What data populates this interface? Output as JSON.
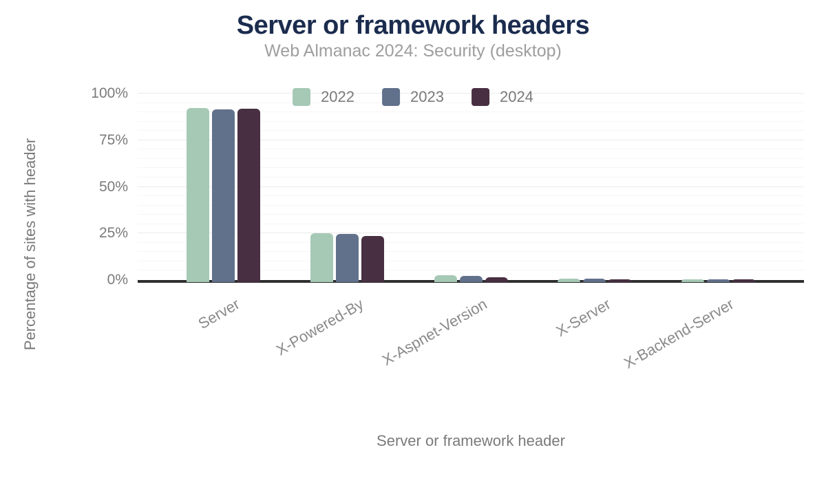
{
  "chart_data": {
    "type": "bar",
    "title": "Server or framework headers",
    "subtitle": "Web Almanac 2024: Security (desktop)",
    "xlabel": "Server or framework header",
    "ylabel": "Percentage of sites with header",
    "categories": [
      "Server",
      "X-Powered-By",
      "X-Aspnet-Version",
      "X-Server",
      "X-Backend-Server"
    ],
    "series": [
      {
        "name": "2022",
        "color": "#a6c9b5",
        "values": [
          92.3,
          25.1,
          2.5,
          0.6,
          0.5
        ]
      },
      {
        "name": "2023",
        "color": "#61718c",
        "values": [
          91.4,
          24.6,
          2.4,
          0.6,
          0.5
        ]
      },
      {
        "name": "2024",
        "color": "#482f41",
        "values": [
          91.8,
          23.7,
          1.4,
          0.5,
          0.4
        ]
      }
    ],
    "ylim": [
      0,
      100
    ],
    "y_tick_values": [
      0,
      25,
      50,
      75,
      100
    ],
    "y_tick_labels": [
      "0%",
      "25%",
      "50%",
      "75%",
      "100%"
    ],
    "minor_grid_step": 5,
    "major_grid_step": 25,
    "legend_position": "top-center",
    "grid": "horizontal"
  },
  "style": {
    "background": "#ffffff",
    "title_color": "#1b2c4e",
    "subtitle_color": "#9e9e9e",
    "axis_text_color": "#7a7a7a",
    "axis_line_color": "#2e2e2e",
    "major_grid_color": "#ebebeb",
    "minor_grid_color": "#f6f6f6"
  }
}
